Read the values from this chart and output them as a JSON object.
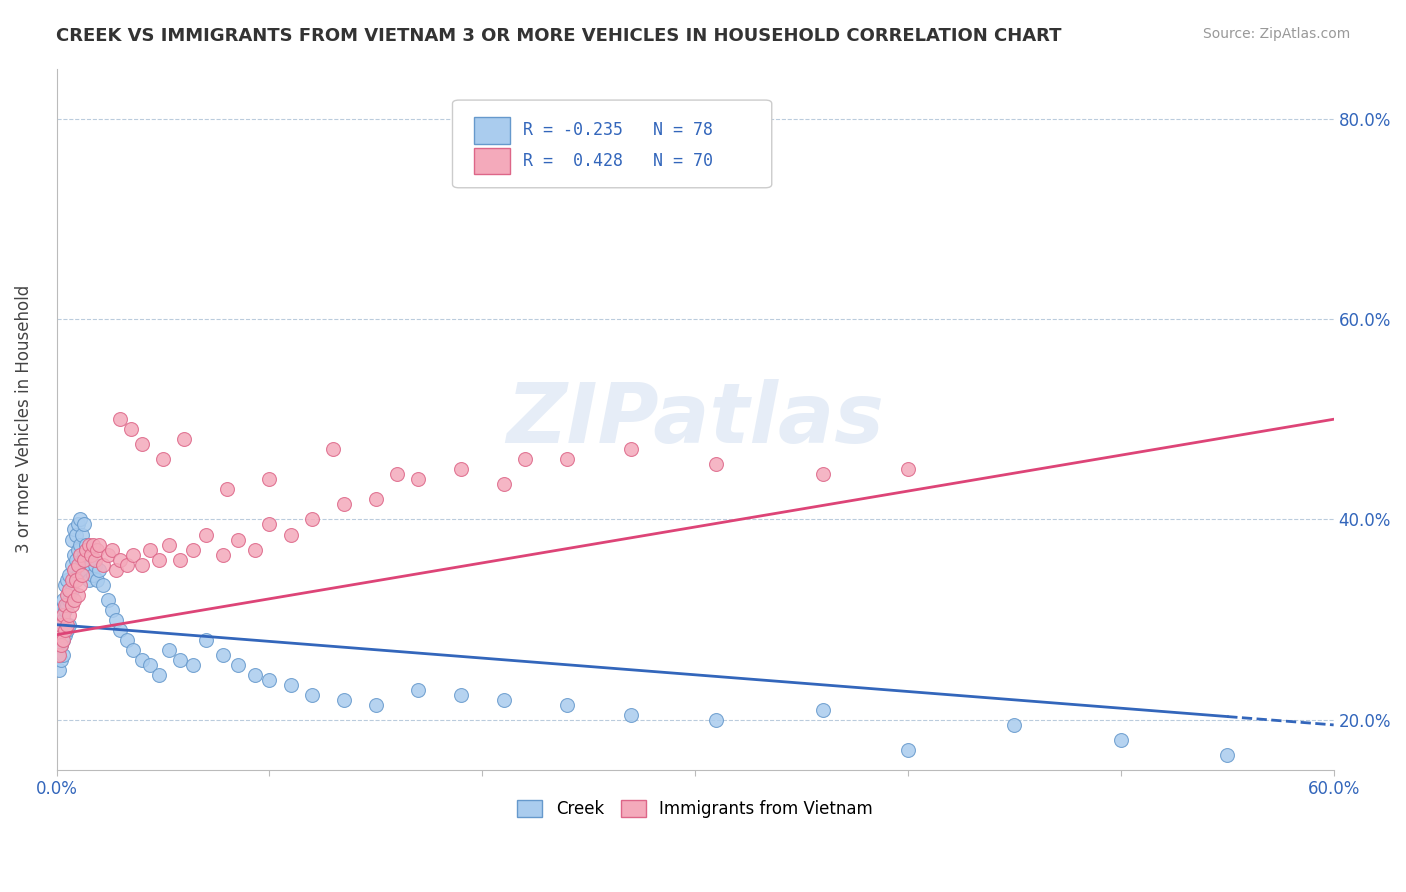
{
  "title": "CREEK VS IMMIGRANTS FROM VIETNAM 3 OR MORE VEHICLES IN HOUSEHOLD CORRELATION CHART",
  "source": "Source: ZipAtlas.com",
  "ylabel": "3 or more Vehicles in Household",
  "y_ticks": [
    0.2,
    0.4,
    0.6,
    0.8
  ],
  "y_tick_labels": [
    "20.0%",
    "40.0%",
    "60.0%",
    "80.0%"
  ],
  "x_ticks": [
    0.0,
    0.1,
    0.2,
    0.3,
    0.4,
    0.5,
    0.6
  ],
  "creek_color": "#aaccee",
  "vietnam_color": "#f4aabb",
  "creek_edge_color": "#6699cc",
  "vietnam_edge_color": "#dd6688",
  "creek_line_color": "#3366bb",
  "vietnam_line_color": "#dd4477",
  "creek_R": -0.235,
  "creek_N": 78,
  "vietnam_R": 0.428,
  "vietnam_N": 70,
  "watermark": "ZIPatlas",
  "legend_label_creek": "Creek",
  "legend_label_vietnam": "Immigrants from Vietnam",
  "creek_line_x0": 0.0,
  "creek_line_x1": 0.6,
  "creek_line_y0": 0.295,
  "creek_line_y1": 0.195,
  "vietnam_line_x0": 0.0,
  "vietnam_line_x1": 0.6,
  "vietnam_line_y0": 0.285,
  "vietnam_line_y1": 0.5,
  "xmin": 0.0,
  "xmax": 0.6,
  "ymin": 0.15,
  "ymax": 0.85,
  "creek_scatter_x": [
    0.001,
    0.001,
    0.001,
    0.002,
    0.002,
    0.002,
    0.002,
    0.003,
    0.003,
    0.003,
    0.003,
    0.004,
    0.004,
    0.004,
    0.005,
    0.005,
    0.005,
    0.006,
    0.006,
    0.006,
    0.007,
    0.007,
    0.007,
    0.008,
    0.008,
    0.009,
    0.009,
    0.01,
    0.01,
    0.01,
    0.011,
    0.011,
    0.012,
    0.012,
    0.013,
    0.013,
    0.014,
    0.014,
    0.015,
    0.015,
    0.016,
    0.017,
    0.018,
    0.019,
    0.02,
    0.022,
    0.024,
    0.026,
    0.028,
    0.03,
    0.033,
    0.036,
    0.04,
    0.044,
    0.048,
    0.053,
    0.058,
    0.064,
    0.07,
    0.078,
    0.085,
    0.093,
    0.1,
    0.11,
    0.12,
    0.135,
    0.15,
    0.17,
    0.19,
    0.21,
    0.24,
    0.27,
    0.31,
    0.36,
    0.4,
    0.45,
    0.5,
    0.55
  ],
  "creek_scatter_y": [
    0.29,
    0.27,
    0.25,
    0.31,
    0.295,
    0.275,
    0.26,
    0.32,
    0.3,
    0.28,
    0.265,
    0.335,
    0.31,
    0.285,
    0.34,
    0.315,
    0.29,
    0.345,
    0.32,
    0.295,
    0.38,
    0.355,
    0.33,
    0.39,
    0.365,
    0.385,
    0.36,
    0.395,
    0.37,
    0.345,
    0.4,
    0.375,
    0.385,
    0.36,
    0.395,
    0.365,
    0.375,
    0.35,
    0.365,
    0.34,
    0.355,
    0.345,
    0.355,
    0.34,
    0.35,
    0.335,
    0.32,
    0.31,
    0.3,
    0.29,
    0.28,
    0.27,
    0.26,
    0.255,
    0.245,
    0.27,
    0.26,
    0.255,
    0.28,
    0.265,
    0.255,
    0.245,
    0.24,
    0.235,
    0.225,
    0.22,
    0.215,
    0.23,
    0.225,
    0.22,
    0.215,
    0.205,
    0.2,
    0.21,
    0.17,
    0.195,
    0.18,
    0.165
  ],
  "vietnam_scatter_x": [
    0.001,
    0.001,
    0.002,
    0.002,
    0.003,
    0.003,
    0.004,
    0.004,
    0.005,
    0.005,
    0.006,
    0.006,
    0.007,
    0.007,
    0.008,
    0.008,
    0.009,
    0.01,
    0.01,
    0.011,
    0.011,
    0.012,
    0.013,
    0.014,
    0.015,
    0.016,
    0.017,
    0.018,
    0.019,
    0.02,
    0.022,
    0.024,
    0.026,
    0.028,
    0.03,
    0.033,
    0.036,
    0.04,
    0.044,
    0.048,
    0.053,
    0.058,
    0.064,
    0.07,
    0.078,
    0.085,
    0.093,
    0.1,
    0.11,
    0.12,
    0.135,
    0.15,
    0.17,
    0.19,
    0.21,
    0.24,
    0.27,
    0.31,
    0.36,
    0.4,
    0.03,
    0.035,
    0.04,
    0.05,
    0.06,
    0.08,
    0.1,
    0.13,
    0.16,
    0.22
  ],
  "vietnam_scatter_y": [
    0.285,
    0.265,
    0.295,
    0.275,
    0.305,
    0.28,
    0.315,
    0.29,
    0.325,
    0.295,
    0.33,
    0.305,
    0.34,
    0.315,
    0.35,
    0.32,
    0.34,
    0.355,
    0.325,
    0.365,
    0.335,
    0.345,
    0.36,
    0.37,
    0.375,
    0.365,
    0.375,
    0.36,
    0.37,
    0.375,
    0.355,
    0.365,
    0.37,
    0.35,
    0.36,
    0.355,
    0.365,
    0.355,
    0.37,
    0.36,
    0.375,
    0.36,
    0.37,
    0.385,
    0.365,
    0.38,
    0.37,
    0.395,
    0.385,
    0.4,
    0.415,
    0.42,
    0.44,
    0.45,
    0.435,
    0.46,
    0.47,
    0.455,
    0.445,
    0.45,
    0.5,
    0.49,
    0.475,
    0.46,
    0.48,
    0.43,
    0.44,
    0.47,
    0.445,
    0.46
  ]
}
